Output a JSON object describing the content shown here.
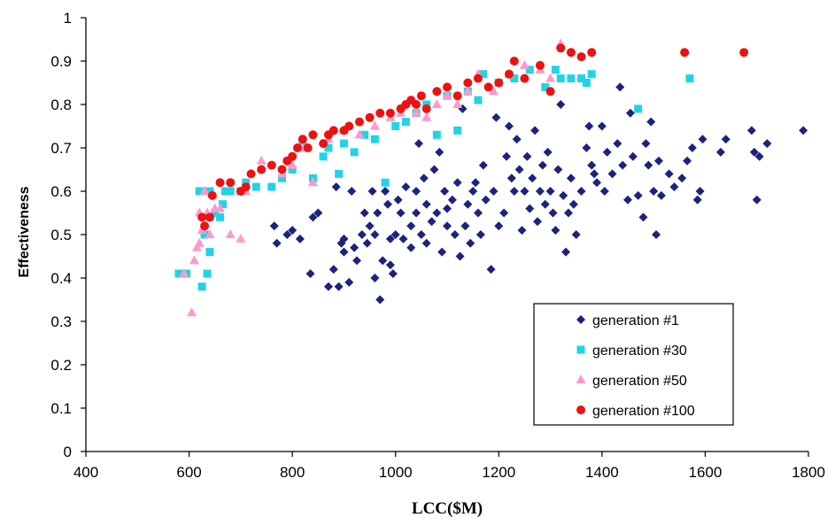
{
  "chart_data": {
    "type": "scatter",
    "title": "",
    "xlabel": "LCC($M)",
    "ylabel": "Effectiveness",
    "xlim": [
      400,
      1800
    ],
    "ylim": [
      0,
      1
    ],
    "xticks": [
      "400",
      "600",
      "800",
      "1000",
      "1200",
      "1400",
      "1600",
      "1800"
    ],
    "yticks": [
      "0",
      "0.1",
      "0.2",
      "0.3",
      "0.4",
      "0.5",
      "0.6",
      "0.7",
      "0.8",
      "0.9",
      "1"
    ],
    "grid": false,
    "legend_position": "lower-right",
    "series": [
      {
        "name": "generation #1",
        "marker": "diamond",
        "color": "#1a237e",
        "points": [
          [
            765,
            0.52
          ],
          [
            770,
            0.48
          ],
          [
            790,
            0.5
          ],
          [
            800,
            0.51
          ],
          [
            815,
            0.49
          ],
          [
            835,
            0.41
          ],
          [
            840,
            0.54
          ],
          [
            850,
            0.55
          ],
          [
            870,
            0.38
          ],
          [
            880,
            0.42
          ],
          [
            885,
            0.61
          ],
          [
            890,
            0.38
          ],
          [
            895,
            0.48
          ],
          [
            900,
            0.46
          ],
          [
            900,
            0.49
          ],
          [
            910,
            0.39
          ],
          [
            915,
            0.6
          ],
          [
            920,
            0.47
          ],
          [
            925,
            0.44
          ],
          [
            935,
            0.5
          ],
          [
            940,
            0.55
          ],
          [
            945,
            0.48
          ],
          [
            950,
            0.52
          ],
          [
            955,
            0.6
          ],
          [
            960,
            0.4
          ],
          [
            960,
            0.5
          ],
          [
            965,
            0.55
          ],
          [
            970,
            0.35
          ],
          [
            975,
            0.44
          ],
          [
            980,
            0.6
          ],
          [
            985,
            0.57
          ],
          [
            990,
            0.43
          ],
          [
            990,
            0.49
          ],
          [
            995,
            0.41
          ],
          [
            1000,
            0.5
          ],
          [
            1005,
            0.58
          ],
          [
            1010,
            0.55
          ],
          [
            1015,
            0.49
          ],
          [
            1020,
            0.61
          ],
          [
            1030,
            0.47
          ],
          [
            1030,
            0.52
          ],
          [
            1040,
            0.6
          ],
          [
            1040,
            0.55
          ],
          [
            1045,
            0.71
          ],
          [
            1050,
            0.5
          ],
          [
            1055,
            0.63
          ],
          [
            1060,
            0.57
          ],
          [
            1060,
            0.48
          ],
          [
            1070,
            0.53
          ],
          [
            1075,
            0.65
          ],
          [
            1080,
            0.55
          ],
          [
            1085,
            0.69
          ],
          [
            1090,
            0.46
          ],
          [
            1095,
            0.6
          ],
          [
            1100,
            0.56
          ],
          [
            1100,
            0.52
          ],
          [
            1110,
            0.58
          ],
          [
            1115,
            0.5
          ],
          [
            1120,
            0.62
          ],
          [
            1125,
            0.45
          ],
          [
            1130,
            0.79
          ],
          [
            1135,
            0.52
          ],
          [
            1140,
            0.57
          ],
          [
            1145,
            0.48
          ],
          [
            1150,
            0.6
          ],
          [
            1155,
            0.62
          ],
          [
            1160,
            0.55
          ],
          [
            1165,
            0.5
          ],
          [
            1170,
            0.66
          ],
          [
            1175,
            0.58
          ],
          [
            1185,
            0.42
          ],
          [
            1190,
            0.6
          ],
          [
            1195,
            0.77
          ],
          [
            1200,
            0.52
          ],
          [
            1210,
            0.55
          ],
          [
            1215,
            0.68
          ],
          [
            1220,
            0.75
          ],
          [
            1225,
            0.63
          ],
          [
            1230,
            0.6
          ],
          [
            1235,
            0.72
          ],
          [
            1240,
            0.65
          ],
          [
            1245,
            0.51
          ],
          [
            1250,
            0.6
          ],
          [
            1255,
            0.68
          ],
          [
            1260,
            0.56
          ],
          [
            1265,
            0.63
          ],
          [
            1270,
            0.74
          ],
          [
            1275,
            0.53
          ],
          [
            1280,
            0.6
          ],
          [
            1285,
            0.66
          ],
          [
            1290,
            0.57
          ],
          [
            1295,
            0.69
          ],
          [
            1300,
            0.6
          ],
          [
            1305,
            0.55
          ],
          [
            1310,
            0.51
          ],
          [
            1315,
            0.65
          ],
          [
            1320,
            0.8
          ],
          [
            1325,
            0.59
          ],
          [
            1330,
            0.46
          ],
          [
            1335,
            0.55
          ],
          [
            1340,
            0.63
          ],
          [
            1345,
            0.57
          ],
          [
            1350,
            0.5
          ],
          [
            1360,
            0.6
          ],
          [
            1370,
            0.7
          ],
          [
            1375,
            0.75
          ],
          [
            1380,
            0.66
          ],
          [
            1385,
            0.64
          ],
          [
            1390,
            0.62
          ],
          [
            1400,
            0.75
          ],
          [
            1405,
            0.6
          ],
          [
            1410,
            0.69
          ],
          [
            1420,
            0.64
          ],
          [
            1430,
            0.71
          ],
          [
            1435,
            0.84
          ],
          [
            1440,
            0.66
          ],
          [
            1450,
            0.58
          ],
          [
            1455,
            0.78
          ],
          [
            1460,
            0.68
          ],
          [
            1470,
            0.59
          ],
          [
            1480,
            0.54
          ],
          [
            1485,
            0.71
          ],
          [
            1490,
            0.66
          ],
          [
            1495,
            0.76
          ],
          [
            1500,
            0.6
          ],
          [
            1505,
            0.5
          ],
          [
            1510,
            0.67
          ],
          [
            1515,
            0.59
          ],
          [
            1530,
            0.64
          ],
          [
            1540,
            0.61
          ],
          [
            1555,
            0.63
          ],
          [
            1565,
            0.67
          ],
          [
            1575,
            0.7
          ],
          [
            1585,
            0.58
          ],
          [
            1590,
            0.6
          ],
          [
            1595,
            0.72
          ],
          [
            1630,
            0.69
          ],
          [
            1640,
            0.72
          ],
          [
            1690,
            0.74
          ],
          [
            1695,
            0.69
          ],
          [
            1700,
            0.58
          ],
          [
            1705,
            0.68
          ],
          [
            1720,
            0.71
          ],
          [
            1790,
            0.74
          ]
        ]
      },
      {
        "name": "generation #30",
        "marker": "square",
        "color": "#22d3e6",
        "points": [
          [
            580,
            0.41
          ],
          [
            595,
            0.41
          ],
          [
            620,
            0.6
          ],
          [
            625,
            0.38
          ],
          [
            630,
            0.5
          ],
          [
            635,
            0.41
          ],
          [
            640,
            0.6
          ],
          [
            640,
            0.46
          ],
          [
            650,
            0.55
          ],
          [
            660,
            0.54
          ],
          [
            665,
            0.57
          ],
          [
            670,
            0.6
          ],
          [
            680,
            0.6
          ],
          [
            700,
            0.6
          ],
          [
            710,
            0.62
          ],
          [
            730,
            0.61
          ],
          [
            760,
            0.61
          ],
          [
            780,
            0.63
          ],
          [
            800,
            0.65
          ],
          [
            820,
            0.71
          ],
          [
            840,
            0.63
          ],
          [
            860,
            0.68
          ],
          [
            870,
            0.7
          ],
          [
            890,
            0.64
          ],
          [
            900,
            0.71
          ],
          [
            920,
            0.69
          ],
          [
            940,
            0.73
          ],
          [
            960,
            0.72
          ],
          [
            980,
            0.62
          ],
          [
            1000,
            0.75
          ],
          [
            1020,
            0.76
          ],
          [
            1040,
            0.78
          ],
          [
            1060,
            0.8
          ],
          [
            1080,
            0.73
          ],
          [
            1100,
            0.82
          ],
          [
            1120,
            0.74
          ],
          [
            1140,
            0.83
          ],
          [
            1160,
            0.81
          ],
          [
            1170,
            0.87
          ],
          [
            1200,
            0.85
          ],
          [
            1230,
            0.86
          ],
          [
            1260,
            0.88
          ],
          [
            1290,
            0.84
          ],
          [
            1310,
            0.88
          ],
          [
            1320,
            0.86
          ],
          [
            1340,
            0.86
          ],
          [
            1360,
            0.86
          ],
          [
            1370,
            0.85
          ],
          [
            1380,
            0.87
          ],
          [
            1470,
            0.79
          ],
          [
            1570,
            0.86
          ]
        ]
      },
      {
        "name": "generation #50",
        "marker": "triangle",
        "color": "#ff99cc",
        "points": [
          [
            590,
            0.41
          ],
          [
            605,
            0.32
          ],
          [
            610,
            0.44
          ],
          [
            615,
            0.47
          ],
          [
            620,
            0.48
          ],
          [
            620,
            0.55
          ],
          [
            625,
            0.51
          ],
          [
            630,
            0.6
          ],
          [
            635,
            0.55
          ],
          [
            640,
            0.5
          ],
          [
            650,
            0.56
          ],
          [
            660,
            0.56
          ],
          [
            680,
            0.5
          ],
          [
            700,
            0.49
          ],
          [
            710,
            0.6
          ],
          [
            740,
            0.67
          ],
          [
            780,
            0.64
          ],
          [
            800,
            0.66
          ],
          [
            820,
            0.7
          ],
          [
            840,
            0.62
          ],
          [
            870,
            0.72
          ],
          [
            900,
            0.74
          ],
          [
            930,
            0.73
          ],
          [
            960,
            0.75
          ],
          [
            990,
            0.77
          ],
          [
            1010,
            0.78
          ],
          [
            1040,
            0.78
          ],
          [
            1060,
            0.77
          ],
          [
            1080,
            0.8
          ],
          [
            1100,
            0.82
          ],
          [
            1120,
            0.8
          ],
          [
            1140,
            0.83
          ],
          [
            1160,
            0.87
          ],
          [
            1190,
            0.83
          ],
          [
            1220,
            0.87
          ],
          [
            1250,
            0.89
          ],
          [
            1280,
            0.88
          ],
          [
            1300,
            0.86
          ],
          [
            1320,
            0.94
          ]
        ]
      },
      {
        "name": "generation #100",
        "marker": "circle",
        "color": "#ee1111",
        "points": [
          [
            625,
            0.54
          ],
          [
            630,
            0.52
          ],
          [
            640,
            0.54
          ],
          [
            645,
            0.59
          ],
          [
            660,
            0.62
          ],
          [
            680,
            0.62
          ],
          [
            700,
            0.6
          ],
          [
            710,
            0.61
          ],
          [
            720,
            0.64
          ],
          [
            740,
            0.65
          ],
          [
            760,
            0.66
          ],
          [
            780,
            0.65
          ],
          [
            790,
            0.67
          ],
          [
            800,
            0.68
          ],
          [
            810,
            0.7
          ],
          [
            820,
            0.72
          ],
          [
            830,
            0.7
          ],
          [
            840,
            0.73
          ],
          [
            860,
            0.71
          ],
          [
            870,
            0.73
          ],
          [
            880,
            0.74
          ],
          [
            900,
            0.74
          ],
          [
            910,
            0.75
          ],
          [
            930,
            0.76
          ],
          [
            950,
            0.77
          ],
          [
            970,
            0.78
          ],
          [
            990,
            0.78
          ],
          [
            1010,
            0.79
          ],
          [
            1020,
            0.8
          ],
          [
            1030,
            0.81
          ],
          [
            1040,
            0.8
          ],
          [
            1050,
            0.82
          ],
          [
            1060,
            0.79
          ],
          [
            1080,
            0.83
          ],
          [
            1100,
            0.84
          ],
          [
            1120,
            0.82
          ],
          [
            1140,
            0.85
          ],
          [
            1160,
            0.86
          ],
          [
            1180,
            0.84
          ],
          [
            1200,
            0.85
          ],
          [
            1220,
            0.87
          ],
          [
            1230,
            0.9
          ],
          [
            1250,
            0.86
          ],
          [
            1280,
            0.89
          ],
          [
            1300,
            0.83
          ],
          [
            1320,
            0.93
          ],
          [
            1340,
            0.92
          ],
          [
            1360,
            0.91
          ],
          [
            1380,
            0.92
          ],
          [
            1560,
            0.92
          ],
          [
            1675,
            0.92
          ]
        ]
      }
    ]
  }
}
